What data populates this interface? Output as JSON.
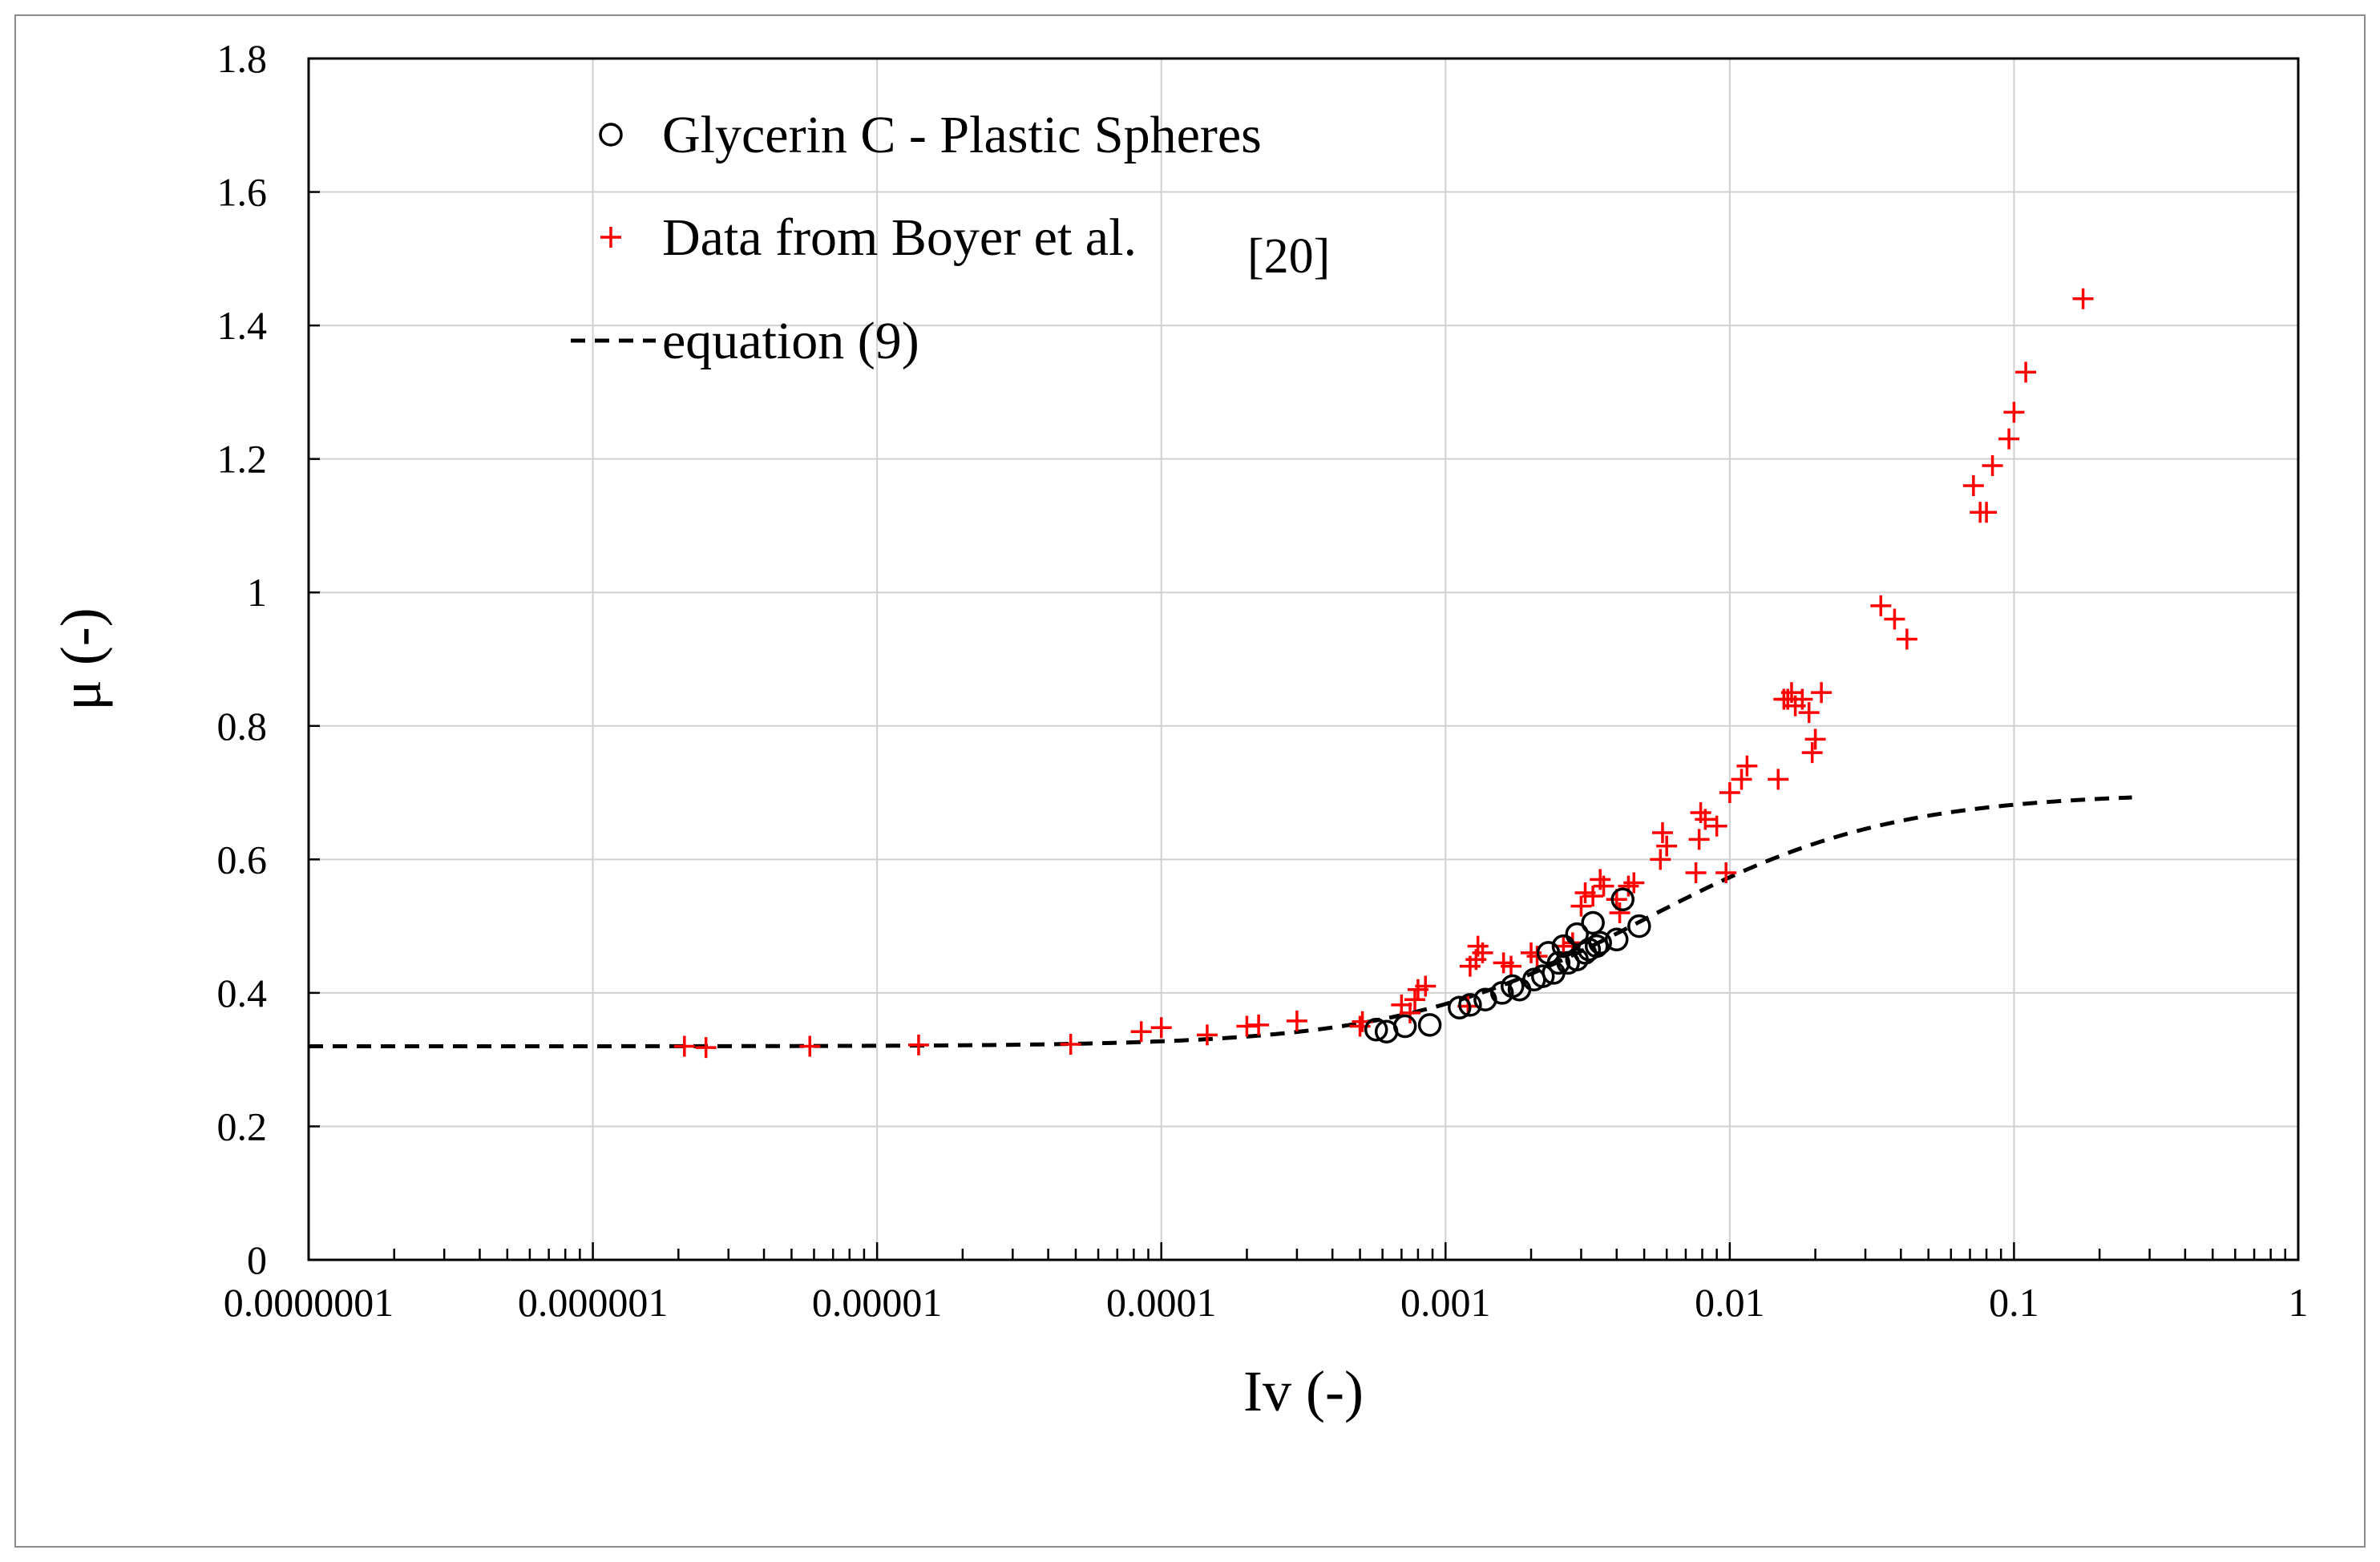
{
  "colors": {
    "series_plus": "#ff0000",
    "series_circle": "#000000",
    "grid": "#d0d0d0"
  },
  "chart_data": {
    "type": "scatter",
    "title": "",
    "xlabel": "Iv (-)",
    "ylabel": "μ (-)",
    "xscale": "log",
    "xlim": [
      1e-07,
      1
    ],
    "ylim": [
      0,
      1.8
    ],
    "grid": true,
    "legend_position": "top-left",
    "x_tick_labels": [
      "0.0000001",
      "0.000001",
      "0.00001",
      "0.0001",
      "0.001",
      "0.01",
      "0.1",
      "1"
    ],
    "y_tick_labels": [
      "0",
      "0.2",
      "0.4",
      "0.6",
      "0.8",
      "1",
      "1.2",
      "1.4",
      "1.6",
      "1.8"
    ],
    "series": [
      {
        "name": "Glycerin C - Plastic Spheres",
        "marker": "circle",
        "points": [
          [
            0.00057,
            0.345
          ],
          [
            0.00062,
            0.342
          ],
          [
            0.00072,
            0.35
          ],
          [
            0.00088,
            0.352
          ],
          [
            0.00112,
            0.378
          ],
          [
            0.00122,
            0.382
          ],
          [
            0.00138,
            0.39
          ],
          [
            0.00158,
            0.4
          ],
          [
            0.00172,
            0.41
          ],
          [
            0.00182,
            0.405
          ],
          [
            0.00205,
            0.42
          ],
          [
            0.0022,
            0.425
          ],
          [
            0.0023,
            0.46
          ],
          [
            0.0024,
            0.43
          ],
          [
            0.0025,
            0.445
          ],
          [
            0.0026,
            0.47
          ],
          [
            0.0027,
            0.445
          ],
          [
            0.0029,
            0.45
          ],
          [
            0.0029,
            0.488
          ],
          [
            0.0031,
            0.46
          ],
          [
            0.0032,
            0.465
          ],
          [
            0.0033,
            0.505
          ],
          [
            0.0034,
            0.47
          ],
          [
            0.0035,
            0.475
          ],
          [
            0.004,
            0.48
          ],
          [
            0.0042,
            0.54
          ],
          [
            0.0048,
            0.5
          ]
        ]
      },
      {
        "name": "Data from Boyer et al.",
        "name_ref": "[20]",
        "marker": "plus",
        "points": [
          [
            2.1e-06,
            0.32
          ],
          [
            2.5e-06,
            0.318
          ],
          [
            5.8e-06,
            0.32
          ],
          [
            1.4e-05,
            0.322
          ],
          [
            4.8e-05,
            0.323
          ],
          [
            8.5e-05,
            0.342
          ],
          [
            0.0001,
            0.348
          ],
          [
            0.000145,
            0.337
          ],
          [
            0.0002,
            0.35
          ],
          [
            0.00022,
            0.352
          ],
          [
            0.0003,
            0.358
          ],
          [
            0.0005,
            0.35
          ],
          [
            0.00051,
            0.357
          ],
          [
            0.0007,
            0.382
          ],
          [
            0.00075,
            0.37
          ],
          [
            0.00078,
            0.39
          ],
          [
            0.0008,
            0.405
          ],
          [
            0.00085,
            0.41
          ],
          [
            0.0012,
            0.38
          ],
          [
            0.00122,
            0.44
          ],
          [
            0.00128,
            0.45
          ],
          [
            0.0013,
            0.47
          ],
          [
            0.00135,
            0.46
          ],
          [
            0.0016,
            0.445
          ],
          [
            0.0017,
            0.44
          ],
          [
            0.002,
            0.46
          ],
          [
            0.0021,
            0.455
          ],
          [
            0.0026,
            0.47
          ],
          [
            0.0028,
            0.475
          ],
          [
            0.003,
            0.53
          ],
          [
            0.0031,
            0.55
          ],
          [
            0.0033,
            0.545
          ],
          [
            0.0035,
            0.57
          ],
          [
            0.0036,
            0.56
          ],
          [
            0.004,
            0.54
          ],
          [
            0.0041,
            0.52
          ],
          [
            0.0044,
            0.56
          ],
          [
            0.0046,
            0.565
          ],
          [
            0.0057,
            0.6
          ],
          [
            0.0058,
            0.64
          ],
          [
            0.006,
            0.62
          ],
          [
            0.0076,
            0.58
          ],
          [
            0.0078,
            0.63
          ],
          [
            0.0079,
            0.67
          ],
          [
            0.0082,
            0.66
          ],
          [
            0.009,
            0.65
          ],
          [
            0.0097,
            0.58
          ],
          [
            0.01,
            0.7
          ],
          [
            0.011,
            0.72
          ],
          [
            0.0115,
            0.74
          ],
          [
            0.0148,
            0.72
          ],
          [
            0.0155,
            0.84
          ],
          [
            0.016,
            0.84
          ],
          [
            0.0165,
            0.85
          ],
          [
            0.017,
            0.83
          ],
          [
            0.018,
            0.84
          ],
          [
            0.019,
            0.82
          ],
          [
            0.0195,
            0.76
          ],
          [
            0.02,
            0.78
          ],
          [
            0.021,
            0.85
          ],
          [
            0.034,
            0.98
          ],
          [
            0.038,
            0.96
          ],
          [
            0.042,
            0.93
          ],
          [
            0.072,
            1.16
          ],
          [
            0.076,
            1.12
          ],
          [
            0.08,
            1.12
          ],
          [
            0.084,
            1.19
          ],
          [
            0.096,
            1.23
          ],
          [
            0.1,
            1.27
          ],
          [
            0.11,
            1.33
          ],
          [
            0.175,
            1.44
          ]
        ]
      },
      {
        "name": "equation (9)",
        "marker": "dashed-line",
        "mu_s": 0.32,
        "mu_2": 0.7,
        "I0": 0.005,
        "x_range": [
          1e-07,
          0.26
        ]
      }
    ]
  }
}
